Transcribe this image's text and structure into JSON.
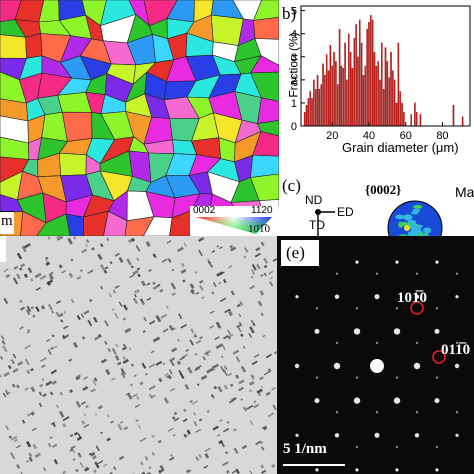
{
  "panel_labels": {
    "b": "b)",
    "c": "(c)",
    "e": "(e)"
  },
  "ebsd": {
    "scale_fragment": "m",
    "ipf_key": {
      "top_left": "0002",
      "top_right": "1120",
      "bottom": "10̇1̅0"
    }
  },
  "pole_figure": {
    "nd": "ND",
    "ed": "ED",
    "td": "TD",
    "plane": "{0002}",
    "cut_label": "Ma"
  },
  "saed": {
    "spot1": "101̅0",
    "spot2": "011̅0",
    "scale": "5 1/nm"
  },
  "chart_data": {
    "type": "bar",
    "xlabel": "Grain diameter (μm)",
    "ylabel": "Fraction (%)",
    "xlim": [
      3,
      95
    ],
    "ylim": [
      0,
      5.2
    ],
    "xticks": [
      20,
      40,
      60,
      80
    ],
    "yticks": [
      0,
      1,
      2,
      3,
      4,
      5
    ],
    "x": [
      5,
      6,
      7,
      8,
      9,
      10,
      11,
      12,
      13,
      14,
      15,
      16,
      17,
      18,
      19,
      20,
      21,
      22,
      23,
      24,
      25,
      26,
      27,
      28,
      29,
      30,
      31,
      32,
      33,
      34,
      35,
      36,
      37,
      38,
      39,
      40,
      41,
      42,
      43,
      44,
      45,
      46,
      47,
      48,
      49,
      50,
      51,
      52,
      53,
      54,
      55,
      56,
      57,
      58,
      59,
      60,
      61,
      62,
      63,
      64,
      65,
      66,
      67,
      68,
      69,
      70,
      71,
      72,
      73,
      74,
      75,
      76,
      77,
      78,
      79,
      80,
      81,
      82,
      83,
      84,
      85,
      86,
      87,
      88,
      89,
      90,
      91,
      92,
      93,
      94
    ],
    "values": [
      0.6,
      0.9,
      1.2,
      1.5,
      1.2,
      2.0,
      1.6,
      2.2,
      1.6,
      1.8,
      2.7,
      2.2,
      3.1,
      2.4,
      3.5,
      2.6,
      3.2,
      2.8,
      1.8,
      4.2,
      2.6,
      2.5,
      3.6,
      2.0,
      4.0,
      3.2,
      2.5,
      3.8,
      4.4,
      3.0,
      4.6,
      3.6,
      2.2,
      2.6,
      4.2,
      4.5,
      4.8,
      4.6,
      3.2,
      2.6,
      2.8,
      2.0,
      3.6,
      1.6,
      3.4,
      2.8,
      2.1,
      3.2,
      2.4,
      2.0,
      1.0,
      3.6,
      1.5,
      1.0,
      0.6,
      0,
      0,
      0,
      0.5,
      0,
      1.0,
      0.6,
      0,
      0.5,
      0,
      0,
      0,
      0,
      0,
      0,
      0,
      0,
      0,
      0,
      0,
      0,
      0,
      0,
      0,
      0,
      0,
      0.9,
      0,
      0,
      0,
      0,
      0.4,
      0,
      0,
      0
    ]
  }
}
